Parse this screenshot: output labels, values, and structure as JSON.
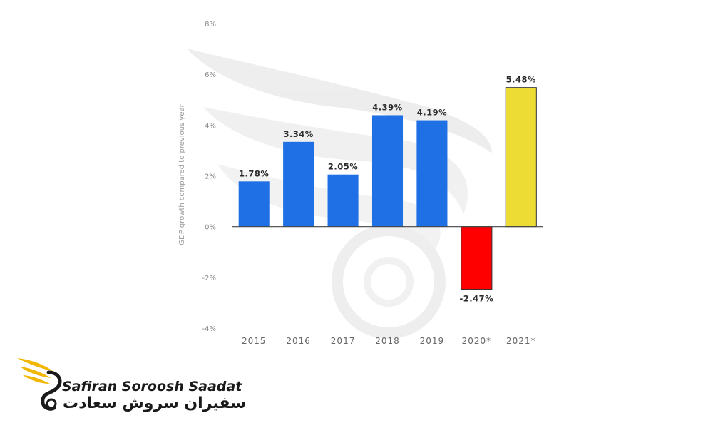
{
  "chart_data": {
    "type": "bar",
    "categories": [
      "2015",
      "2016",
      "2017",
      "2018",
      "2019",
      "2020*",
      "2021*"
    ],
    "values": [
      1.78,
      3.34,
      2.05,
      4.39,
      4.19,
      -2.47,
      5.48
    ],
    "data_labels": [
      "1.78%",
      "3.34%",
      "2.05%",
      "4.39%",
      "4.19%",
      "-2.47%",
      "5.48%"
    ],
    "bar_colors": [
      "#1f6fe5",
      "#1f6fe5",
      "#1f6fe5",
      "#1f6fe5",
      "#1f6fe5",
      "#ff0000",
      "#ecdc33"
    ],
    "ylabel": "GDP growth compared to previous year",
    "ylim": [
      -4,
      8
    ],
    "yticks": [
      8,
      6,
      4,
      2,
      0,
      -2,
      -4
    ],
    "ytick_labels": [
      "8%",
      "6%",
      "4%",
      "2%",
      "0%",
      "-2%",
      "-4%"
    ],
    "grid": false
  },
  "brand": {
    "name_en": "Safiran Soroosh Saadat",
    "name_fa": "سفیران سروش سعادت",
    "accent_color": "#f2b705",
    "logo_icon": "golden-wing-swan-icon",
    "watermark_icon": "wing-swan-watermark-icon"
  }
}
